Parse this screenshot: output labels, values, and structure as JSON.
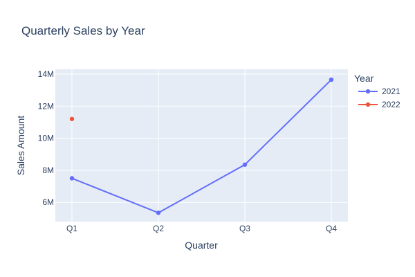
{
  "chart_data": {
    "type": "line",
    "title": "Quarterly Sales by Year",
    "xlabel": "Quarter",
    "ylabel": "Sales Amount",
    "categories": [
      "Q1",
      "Q2",
      "Q3",
      "Q4"
    ],
    "ylim": [
      4800000,
      14300000
    ],
    "yticks": [
      6000000,
      8000000,
      10000000,
      12000000,
      14000000
    ],
    "ytick_labels": [
      "6M",
      "8M",
      "10M",
      "12M",
      "14M"
    ],
    "grid": true,
    "legend": {
      "title": "Year",
      "placement": "right"
    },
    "series": [
      {
        "name": "2021",
        "color": "#636efa",
        "values": [
          7500000,
          5350000,
          8350000,
          13650000
        ]
      },
      {
        "name": "2022",
        "color": "#ef553b",
        "values": [
          11200000,
          null,
          null,
          null
        ]
      }
    ]
  },
  "colors": {
    "plot_background": "#e5ecf6",
    "grid": "#ffffff",
    "text": "#2a3f5f"
  }
}
